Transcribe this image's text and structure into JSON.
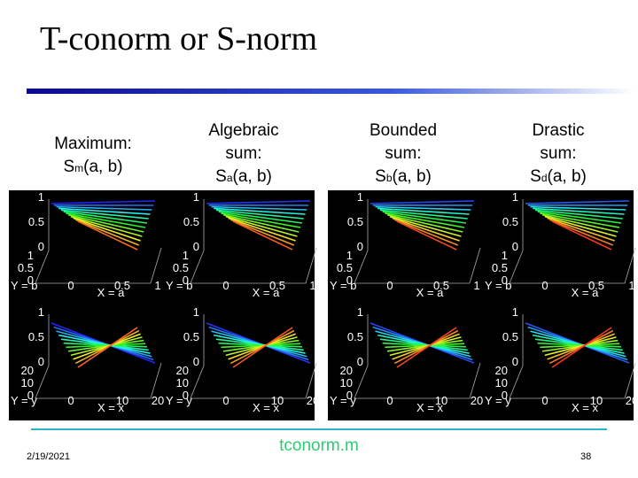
{
  "header": {
    "title": "T-conorm or S-norm"
  },
  "columns": [
    {
      "name_lines": [
        "Maximum:"
      ],
      "symbol": "S",
      "subscript": "m",
      "args": "(a, b)"
    },
    {
      "name_lines": [
        "Algebraic",
        "sum:"
      ],
      "symbol": "S",
      "subscript": "a",
      "args": "(a, b)"
    },
    {
      "name_lines": [
        "Bounded",
        "sum:"
      ],
      "symbol": "S",
      "subscript": "b",
      "args": "(a, b)"
    },
    {
      "name_lines": [
        "Drastic",
        "sum:"
      ],
      "symbol": "S",
      "subscript": "d",
      "args": "(a, b)"
    }
  ],
  "plots": {
    "top": {
      "z_ticks": [
        "1",
        "0.5",
        "0"
      ],
      "y_ticks": [
        "1",
        "0.5",
        "0"
      ],
      "y_label": "Y = b",
      "x_ticks": [
        "0",
        "0.5",
        "1"
      ],
      "x_label": "X = a"
    },
    "bottom": {
      "z_ticks": [
        "1",
        "0.5",
        "0"
      ],
      "y_ticks": [
        "20",
        "10",
        "0"
      ],
      "y_label": "Y = y",
      "x_ticks": [
        "0",
        "10",
        "20"
      ],
      "x_label": "X = x"
    }
  },
  "footer": {
    "date": "2/19/2021",
    "file": "tconorm.m",
    "page": "38"
  }
}
